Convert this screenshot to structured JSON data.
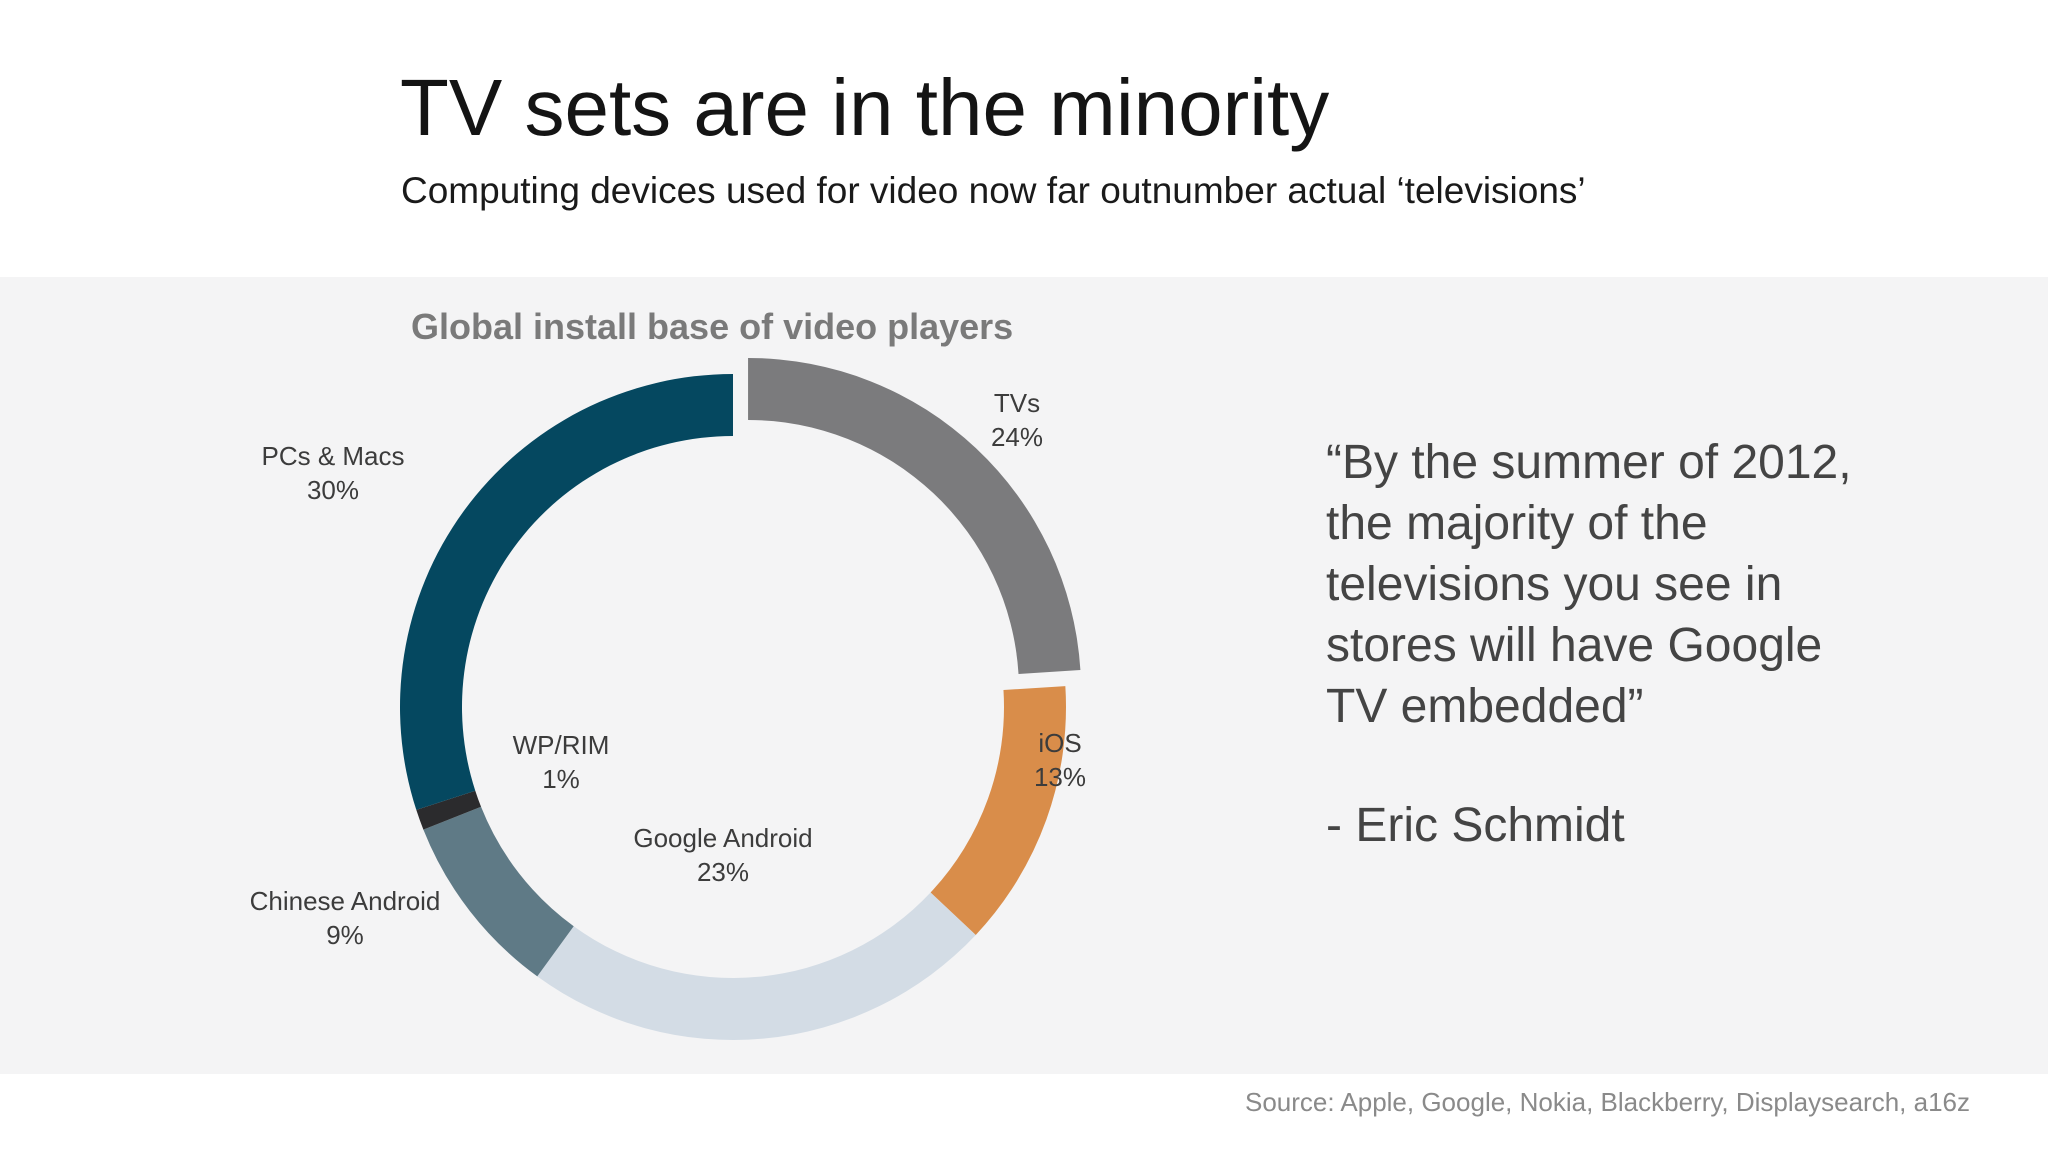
{
  "header": {
    "title": "TV sets are in the minority",
    "subtitle": "Computing devices used for video now far outnumber actual ‘televisions’"
  },
  "chart_data": {
    "type": "pie",
    "title": "Global install base of video players",
    "style": "donut",
    "slices": [
      {
        "label": "TVs",
        "value": 24,
        "value_label": "24%",
        "color": "#7b7b7d",
        "exploded": true
      },
      {
        "label": "iOS",
        "value": 13,
        "value_label": "13%",
        "color": "#d98d4a",
        "exploded": false
      },
      {
        "label": "Google Android",
        "value": 23,
        "value_label": "23%",
        "color": "#d3dce5",
        "exploded": false
      },
      {
        "label": "Chinese Android",
        "value": 9,
        "value_label": "9%",
        "color": "#5f7a86",
        "exploded": false
      },
      {
        "label": "WP/RIM",
        "value": 1,
        "value_label": "1%",
        "color": "#2b2b2d",
        "exploded": false
      },
      {
        "label": "PCs & Macs",
        "value": 30,
        "value_label": "30%",
        "color": "#054860",
        "exploded": false
      }
    ]
  },
  "quote": {
    "lines": [
      "“By the summer of 2012,",
      "the majority of the",
      "televisions you see in",
      "stores will have Google",
      "TV embedded”"
    ],
    "attribution": "- Eric Schmidt"
  },
  "footer": {
    "source": "Source: Apple, Google, Nokia, Blackberry, Displaysearch, a16z"
  }
}
